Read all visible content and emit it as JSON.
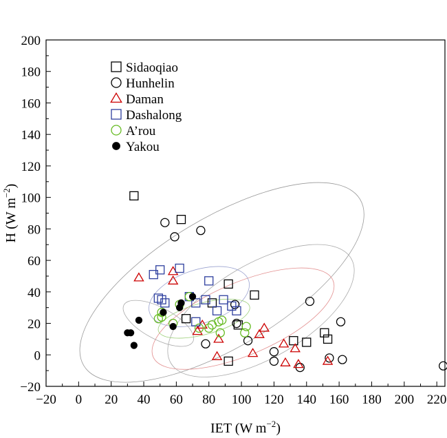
{
  "chart_data": {
    "type": "scatter",
    "xlabel": "IET (W m",
    "xlabel_sup": "−2",
    "xlabel_end": ")",
    "ylabel": "H (W m",
    "ylabel_sup": "−2",
    "ylabel_end": ")",
    "xlim": [
      -20,
      225
    ],
    "ylim": [
      -20,
      200
    ],
    "xticks": [
      -20,
      0,
      20,
      40,
      60,
      80,
      100,
      120,
      140,
      160,
      180,
      200,
      220
    ],
    "yticks": [
      -20,
      0,
      20,
      40,
      60,
      80,
      100,
      120,
      140,
      160,
      180,
      200
    ],
    "xtick_labels": [
      "−20",
      "0",
      "20",
      "40",
      "60",
      "80",
      "100",
      "120",
      "140",
      "160",
      "180",
      "200",
      "220"
    ],
    "ytick_labels": [
      "−20",
      "0",
      "20",
      "40",
      "60",
      "80",
      "100",
      "120",
      "140",
      "160",
      "180",
      "200"
    ],
    "grid": false,
    "legend_position": "top-left",
    "series": [
      {
        "name": "Sidaoqiao",
        "marker": "square",
        "color": "#000000",
        "filled": false,
        "points": [
          [
            34,
            101
          ],
          [
            63,
            86
          ],
          [
            92,
            45
          ],
          [
            108,
            38
          ],
          [
            66,
            23
          ],
          [
            82,
            33
          ],
          [
            92,
            -4
          ],
          [
            98,
            19
          ],
          [
            132,
            9
          ],
          [
            140,
            8
          ],
          [
            151,
            14
          ],
          [
            153,
            10
          ]
        ]
      },
      {
        "name": "Hunhelin",
        "marker": "circle",
        "color": "#000000",
        "filled": false,
        "points": [
          [
            53,
            84
          ],
          [
            59,
            75
          ],
          [
            75,
            79
          ],
          [
            96,
            32
          ],
          [
            97,
            20
          ],
          [
            78,
            7
          ],
          [
            104,
            9
          ],
          [
            120,
            2
          ],
          [
            120,
            -4
          ],
          [
            136,
            -8
          ],
          [
            142,
            34
          ],
          [
            154,
            -2
          ],
          [
            161,
            21
          ],
          [
            162,
            -3
          ],
          [
            224,
            -7
          ]
        ]
      },
      {
        "name": "Daman",
        "marker": "triangle",
        "color": "#cc0000",
        "filled": false,
        "points": [
          [
            37,
            49
          ],
          [
            58,
            53
          ],
          [
            58,
            47
          ],
          [
            73,
            15
          ],
          [
            76,
            19
          ],
          [
            85,
            -1
          ],
          [
            86,
            10
          ],
          [
            107,
            1
          ],
          [
            111,
            13
          ],
          [
            114,
            17
          ],
          [
            126,
            7
          ],
          [
            127,
            -5
          ],
          [
            133,
            4
          ],
          [
            135,
            -6
          ],
          [
            153,
            -4
          ]
        ]
      },
      {
        "name": "Dashalong",
        "marker": "square",
        "color": "#2e3f9e",
        "filled": false,
        "points": [
          [
            46,
            51
          ],
          [
            50,
            54
          ],
          [
            62,
            55
          ],
          [
            49,
            36
          ],
          [
            51,
            35
          ],
          [
            53,
            33
          ],
          [
            68,
            37
          ],
          [
            72,
            33
          ],
          [
            72,
            21
          ],
          [
            78,
            35
          ],
          [
            80,
            47
          ],
          [
            85,
            28
          ],
          [
            89,
            35
          ],
          [
            94,
            31
          ],
          [
            97,
            28
          ]
        ]
      },
      {
        "name": "A’rou",
        "marker": "circle",
        "color": "#66bb22",
        "filled": false,
        "points": [
          [
            49,
            23
          ],
          [
            51,
            24
          ],
          [
            51,
            27
          ],
          [
            58,
            20
          ],
          [
            62,
            32
          ],
          [
            68,
            37
          ],
          [
            74,
            17
          ],
          [
            80,
            17
          ],
          [
            82,
            19
          ],
          [
            86,
            21
          ],
          [
            87,
            14
          ],
          [
            88,
            22
          ],
          [
            102,
            14
          ],
          [
            103,
            18
          ]
        ]
      },
      {
        "name": "Yakou",
        "marker": "circle",
        "color": "#000000",
        "filled": true,
        "points": [
          [
            30,
            14
          ],
          [
            32,
            14
          ],
          [
            34,
            6
          ],
          [
            37,
            22
          ],
          [
            52,
            27
          ],
          [
            58,
            18
          ],
          [
            62,
            30
          ],
          [
            63,
            33
          ],
          [
            70,
            37
          ]
        ]
      }
    ],
    "ellipses": [
      {
        "series": "Sidaoqiao",
        "cx": 88,
        "cy": 46,
        "rx": 99,
        "ry": 41,
        "angle": -31,
        "color": "#999999"
      },
      {
        "series": "Hunhelin",
        "cx": 112,
        "cy": 28,
        "rx": 64,
        "ry": 30,
        "angle": -30,
        "color": "#aaaaaa"
      },
      {
        "series": "Daman",
        "cx": 101,
        "cy": 23,
        "rx": 60,
        "ry": 23,
        "angle": -23,
        "color": "#e39090"
      },
      {
        "series": "Dashalong",
        "cx": 74,
        "cy": 37,
        "rx": 32,
        "ry": 17,
        "angle": -18,
        "color": "#9aa2cf"
      },
      {
        "series": "A’rou",
        "cx": 77,
        "cy": 23,
        "rx": 29,
        "ry": 10,
        "angle": -15,
        "color": "#9ccf78"
      },
      {
        "series": "Yakou",
        "cx": 49,
        "cy": 20,
        "rx": 24,
        "ry": 10,
        "angle": 28,
        "color": "#aaaaaa"
      }
    ]
  }
}
